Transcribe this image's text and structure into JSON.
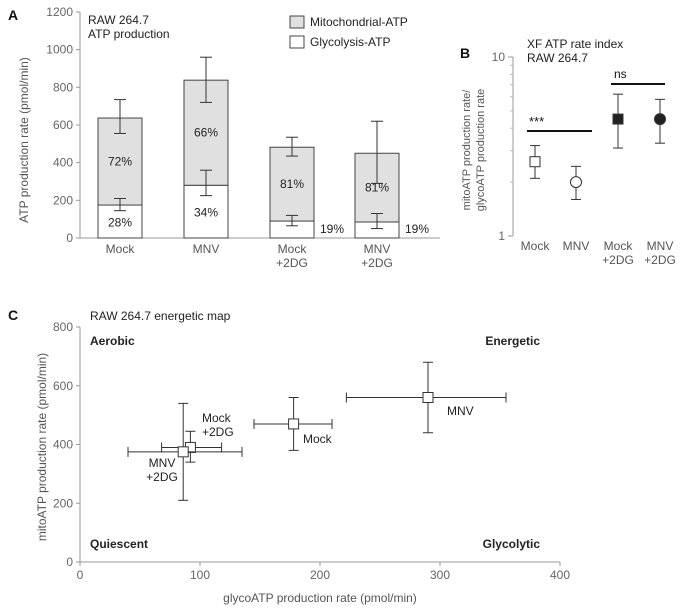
{
  "chart_data": [
    {
      "panel_label": "A",
      "type": "bar",
      "stacked": true,
      "title": "RAW 264.7\nATP production",
      "ylabel": "ATP production rate (pmol/min)",
      "ylim": [
        0,
        1200
      ],
      "yticks": [
        0,
        200,
        400,
        600,
        800,
        1000,
        1200
      ],
      "categories": [
        "Mock",
        "MNV",
        "Mock\n+2DG",
        "MNV\n+2DG"
      ],
      "series": [
        {
          "name": "Glycolysis-ATP",
          "color": "#ffffff",
          "values": [
            175,
            280,
            90,
            85
          ],
          "err_low": [
            145,
            225,
            65,
            50
          ],
          "err_high": [
            210,
            360,
            120,
            130
          ],
          "pct_labels": [
            "28%",
            "34%",
            "19%",
            "19%"
          ]
        },
        {
          "name": "Mitochondrial-ATP",
          "color": "#e0e0e0",
          "values": [
            462,
            558,
            392,
            365
          ],
          "totals": [
            637,
            838,
            482,
            450
          ],
          "err_low": [
            555,
            720,
            435,
            290
          ],
          "err_high": [
            735,
            960,
            535,
            620
          ],
          "pct_labels": [
            "72%",
            "66%",
            "81%",
            "81%"
          ]
        }
      ],
      "legend": [
        "Mitochondrial-ATP",
        "Glycolysis-ATP"
      ],
      "legend_position": "top-right"
    },
    {
      "panel_label": "B",
      "type": "scatter",
      "title": "XF ATP rate index\nRAW 264.7",
      "ylabel": "mitoATP production rate/\nglycoATP production rate",
      "yscale": "log",
      "ylim": [
        1,
        10
      ],
      "yticks": [
        1,
        10
      ],
      "categories": [
        "Mock",
        "MNV",
        "Mock\n+2DG",
        "MNV\n+2DG"
      ],
      "values": [
        2.6,
        2.0,
        4.5,
        4.5
      ],
      "err_low": [
        2.1,
        1.6,
        3.1,
        3.3
      ],
      "err_high": [
        3.2,
        2.45,
        6.2,
        5.8
      ],
      "markers": [
        "open-square",
        "open-circle",
        "filled-square",
        "filled-circle"
      ],
      "significance": [
        {
          "label": "***",
          "between": [
            "Mock",
            "MNV"
          ]
        },
        {
          "label": "ns",
          "between": [
            "Mock\n+2DG",
            "MNV\n+2DG"
          ]
        }
      ]
    },
    {
      "panel_label": "C",
      "type": "scatter",
      "title": "RAW 264.7 energetic map",
      "xlabel": "glycoATP production rate (pmol/min)",
      "ylabel": "mitoATP production rate (pmol/min)",
      "xlim": [
        0,
        400
      ],
      "ylim": [
        0,
        800
      ],
      "xticks": [
        0,
        100,
        200,
        300,
        400
      ],
      "yticks": [
        0,
        200,
        400,
        600,
        800
      ],
      "points": [
        {
          "name": "Mock",
          "x": 178,
          "y": 470,
          "x_err": [
            145,
            210
          ],
          "y_err": [
            380,
            560
          ]
        },
        {
          "name": "MNV",
          "x": 290,
          "y": 560,
          "x_err": [
            222,
            355
          ],
          "y_err": [
            440,
            680
          ]
        },
        {
          "name": "Mock\n+2DG",
          "x": 92,
          "y": 390,
          "x_err": [
            68,
            118
          ],
          "y_err": [
            340,
            445
          ]
        },
        {
          "name": "MNV\n+2DG",
          "x": 86,
          "y": 375,
          "x_err": [
            40,
            135
          ],
          "y_err": [
            210,
            540
          ]
        }
      ],
      "quadrants": [
        "Aerobic",
        "Energetic",
        "Quiescent",
        "Glycolytic"
      ]
    }
  ]
}
